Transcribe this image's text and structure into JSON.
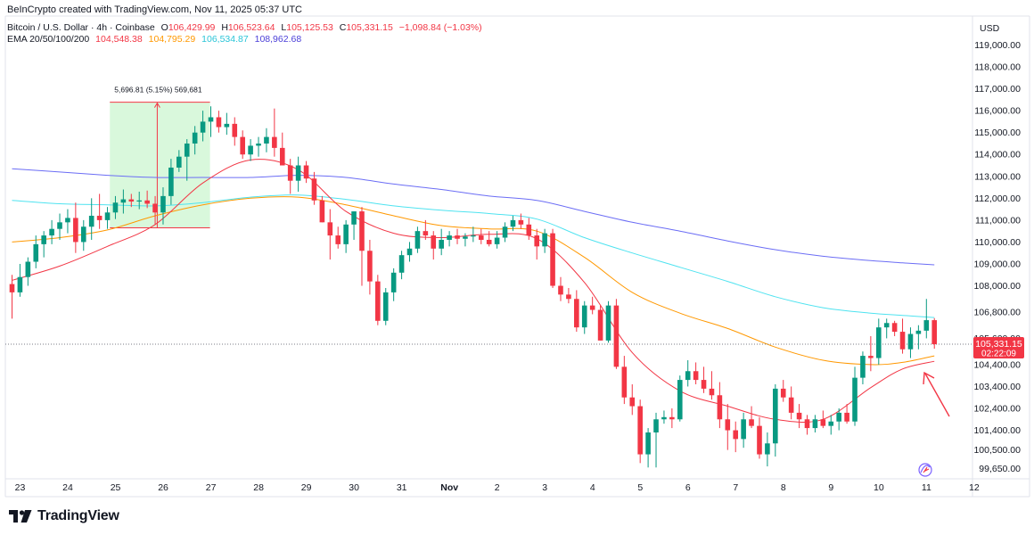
{
  "header": {
    "created_by": "BeInCrypto created with TradingView.com, Nov 11, 2025 05:37 UTC"
  },
  "legend": {
    "symbol": "Bitcoin / U.S. Dollar · 4h · Coinbase",
    "open_label": "O",
    "open_value": "106,429.99",
    "high_label": "H",
    "high_value": "106,523.64",
    "low_label": "L",
    "low_value": "105,125.53",
    "close_label": "C",
    "close_value": "105,331.15",
    "change": "−1,098.84 (−1.03%)",
    "ema_title": "EMA 20/50/100/200",
    "ema20": "104,548.38",
    "ema50": "104,795.29",
    "ema100": "106,534.87",
    "ema200": "108,962.68"
  },
  "colors": {
    "up": "#089981",
    "down": "#f23645",
    "ema20": "#f23645",
    "ema50": "#ff9800",
    "ema100": "#4fe3f0",
    "ema200": "#6b6df5",
    "measure_fill": "#b9f2c0",
    "measure_border": "#f23645",
    "price_tag": "#f23645"
  },
  "brand": {
    "name": "TradingView",
    "icon": "tradingview-logo-icon"
  },
  "chart_data": {
    "type": "candlestick",
    "currency": "USD",
    "timeframe": "4h",
    "ylim": [
      99150,
      119700
    ],
    "price_labels": [
      "119,000.00",
      "118,000.00",
      "117,000.00",
      "116,000.00",
      "115,000.00",
      "114,000.00",
      "113,000.00",
      "112,000.00",
      "111,000.00",
      "110,000.00",
      "109,000.00",
      "108,000.00",
      "106,800.00",
      "105,600.00",
      "104,400.00",
      "103,400.00",
      "102,400.00",
      "101,400.00",
      "100,500.00",
      "99,650.00"
    ],
    "price_ticks": [
      119000,
      118000,
      117000,
      116000,
      115000,
      114000,
      113000,
      112000,
      111000,
      110000,
      109000,
      108000,
      106800,
      105600,
      104400,
      103400,
      102400,
      101400,
      100500,
      99650
    ],
    "date_labels": [
      "23",
      "24",
      "25",
      "26",
      "27",
      "28",
      "29",
      "30",
      "31",
      "Nov",
      "2",
      "3",
      "4",
      "5",
      "6",
      "7",
      "8",
      "9",
      "10",
      "11",
      "12"
    ],
    "date_ticks": [
      0,
      6,
      12,
      18,
      24,
      30,
      36,
      42,
      48,
      54,
      60,
      66,
      72,
      78,
      84,
      90,
      96,
      102,
      108,
      114,
      120
    ],
    "last_price": {
      "price": 105331.15,
      "label": "105,331.15",
      "countdown": "02:22:09"
    },
    "measure": {
      "label": "5,696.81 (5.15%) 569,681",
      "start_bar": 12.3,
      "end_bar": 24.9,
      "low": 110650,
      "high": 116390
    },
    "candles": [
      [
        0,
        108080,
        108500,
        106500,
        107700
      ],
      [
        1,
        107700,
        109000,
        107500,
        108400
      ],
      [
        2,
        108400,
        109300,
        108000,
        109100
      ],
      [
        3,
        109100,
        110300,
        108800,
        109900
      ],
      [
        4,
        109900,
        110500,
        109300,
        110300
      ],
      [
        5,
        110300,
        111000,
        109900,
        110600
      ],
      [
        6,
        110600,
        111300,
        110100,
        110900
      ],
      [
        7,
        110900,
        111500,
        110400,
        111100
      ],
      [
        8,
        111100,
        111800,
        109500,
        110000
      ],
      [
        9,
        110000,
        111000,
        109600,
        110700
      ],
      [
        10,
        110700,
        112000,
        110100,
        111200
      ],
      [
        11,
        111200,
        112200,
        110600,
        111000
      ],
      [
        12,
        111000,
        111600,
        110600,
        111350
      ],
      [
        13,
        111350,
        112100,
        111050,
        111800
      ],
      [
        14,
        111800,
        112400,
        111300,
        111950
      ],
      [
        15,
        111950,
        112200,
        111600,
        111850
      ],
      [
        16,
        111850,
        112300,
        111500,
        111900
      ],
      [
        17,
        111900,
        112350,
        111550,
        111750
      ],
      [
        18,
        111750,
        112100,
        110800,
        111350
      ],
      [
        19,
        111350,
        112500,
        110800,
        112100
      ],
      [
        20,
        112100,
        113800,
        111700,
        113400
      ],
      [
        21,
        113400,
        114200,
        113200,
        113900
      ],
      [
        22,
        113900,
        114700,
        112800,
        114500
      ],
      [
        23,
        114500,
        115300,
        114000,
        115000
      ],
      [
        24,
        115000,
        116000,
        114600,
        115500
      ],
      [
        25,
        115500,
        116200,
        114800,
        115700
      ],
      [
        26,
        115700,
        116000,
        115000,
        115250
      ],
      [
        27,
        115250,
        115900,
        114900,
        115400
      ],
      [
        28,
        115400,
        115700,
        114400,
        114800
      ],
      [
        29,
        114800,
        115100,
        113800,
        114000
      ],
      [
        30,
        114000,
        114700,
        113700,
        114400
      ],
      [
        31,
        114400,
        114800,
        113900,
        114500
      ],
      [
        32,
        114500,
        115200,
        114100,
        114800
      ],
      [
        33,
        114800,
        116100,
        113900,
        114300
      ],
      [
        34,
        114300,
        115000,
        113700,
        113500
      ],
      [
        35,
        113500,
        113800,
        112200,
        112800
      ],
      [
        36,
        112800,
        113900,
        112300,
        113500
      ],
      [
        37,
        113500,
        113700,
        112700,
        112900
      ],
      [
        38,
        112900,
        113200,
        111700,
        111900
      ],
      [
        39,
        111900,
        112100,
        110900,
        110900
      ],
      [
        40,
        110900,
        111500,
        109200,
        110300
      ],
      [
        41,
        110300,
        110700,
        109700,
        109900
      ],
      [
        42,
        109900,
        111000,
        109500,
        110800
      ],
      [
        43,
        110800,
        111400,
        110100,
        111400
      ],
      [
        44,
        111400,
        111600,
        108000,
        109600
      ],
      [
        45,
        109600,
        110100,
        107600,
        108200
      ],
      [
        46,
        108200,
        108500,
        106200,
        106400
      ],
      [
        47,
        106400,
        107900,
        106200,
        107700
      ],
      [
        48,
        107700,
        108800,
        107300,
        108600
      ],
      [
        49,
        108600,
        109600,
        108300,
        109400
      ],
      [
        50,
        109400,
        110000,
        109100,
        109700
      ],
      [
        51,
        109700,
        110700,
        109500,
        110500
      ],
      [
        52,
        110500,
        111000,
        110100,
        110300
      ],
      [
        53,
        110300,
        110500,
        109200,
        109700
      ],
      [
        54,
        109700,
        110600,
        109400,
        110100
      ],
      [
        55,
        110100,
        110500,
        109800,
        110300
      ],
      [
        56,
        110300,
        110600,
        109900,
        110150
      ],
      [
        57,
        110150,
        110400,
        109800,
        110250
      ],
      [
        58,
        110250,
        110700,
        110000,
        110300
      ],
      [
        59,
        110300,
        110600,
        109900,
        110100
      ],
      [
        60,
        110100,
        110500,
        109800,
        109900
      ],
      [
        61,
        109900,
        110500,
        109700,
        110200
      ],
      [
        62,
        110200,
        110900,
        110000,
        110700
      ],
      [
        63,
        110700,
        111200,
        110500,
        111000
      ],
      [
        64,
        111000,
        111300,
        110600,
        110800
      ],
      [
        65,
        110800,
        111100,
        110100,
        110300
      ],
      [
        66,
        110300,
        110600,
        109200,
        109800
      ],
      [
        67,
        109800,
        110600,
        109500,
        110400
      ],
      [
        68,
        110400,
        110600,
        107900,
        108000
      ],
      [
        69,
        108000,
        108400,
        107300,
        107600
      ],
      [
        70,
        107600,
        107900,
        107200,
        107400
      ],
      [
        71,
        107400,
        107800,
        105900,
        106100
      ],
      [
        72,
        106100,
        107300,
        105800,
        107100
      ],
      [
        73,
        107100,
        107500,
        106700,
        106900
      ],
      [
        74,
        106900,
        107100,
        105500,
        105500
      ],
      [
        75,
        105500,
        107300,
        105400,
        107100
      ],
      [
        76,
        107100,
        107400,
        104200,
        104300
      ],
      [
        77,
        104300,
        104800,
        102600,
        102900
      ],
      [
        78,
        102900,
        103500,
        102100,
        102500
      ],
      [
        79,
        102500,
        102800,
        99900,
        100300
      ],
      [
        80,
        100300,
        101500,
        99700,
        101300
      ],
      [
        81,
        101300,
        102200,
        99700,
        101900
      ],
      [
        82,
        101900,
        102300,
        101700,
        102000
      ],
      [
        83,
        102000,
        102400,
        101500,
        101900
      ],
      [
        84,
        101900,
        103900,
        101800,
        103700
      ],
      [
        85,
        103700,
        104600,
        103400,
        104100
      ],
      [
        86,
        104100,
        104500,
        103500,
        103700
      ],
      [
        87,
        103700,
        104300,
        103100,
        103300
      ],
      [
        88,
        103300,
        104100,
        102800,
        103000
      ],
      [
        89,
        103000,
        103600,
        101500,
        101900
      ],
      [
        90,
        101900,
        102600,
        100500,
        101400
      ],
      [
        91,
        101400,
        101800,
        100400,
        101000
      ],
      [
        92,
        101000,
        102200,
        100600,
        101900
      ],
      [
        93,
        101900,
        102500,
        101500,
        101600
      ],
      [
        94,
        101600,
        102000,
        100100,
        100300
      ],
      [
        95,
        100300,
        101300,
        99750,
        100800
      ],
      [
        96,
        100800,
        103500,
        100200,
        103300
      ],
      [
        97,
        103300,
        103700,
        102700,
        102900
      ],
      [
        98,
        102900,
        103400,
        101900,
        102200
      ],
      [
        99,
        102200,
        102600,
        101500,
        101900
      ],
      [
        100,
        101900,
        102100,
        101200,
        101500
      ],
      [
        101,
        101500,
        102100,
        101300,
        101900
      ],
      [
        102,
        101900,
        102300,
        101500,
        101600
      ],
      [
        103,
        101600,
        102100,
        101200,
        101800
      ],
      [
        104,
        101800,
        102400,
        101400,
        102200
      ],
      [
        105,
        102200,
        102600,
        101700,
        101800
      ],
      [
        106,
        101800,
        104300,
        101600,
        103800
      ],
      [
        107,
        103800,
        105000,
        103500,
        104800
      ],
      [
        108,
        104800,
        105700,
        104100,
        104700
      ],
      [
        109,
        104700,
        106500,
        104400,
        106100
      ],
      [
        110,
        106100,
        106500,
        105600,
        106300
      ],
      [
        111,
        106300,
        106400,
        105700,
        105900
      ],
      [
        112,
        105900,
        106500,
        104900,
        105100
      ],
      [
        113,
        105100,
        106100,
        104700,
        105800
      ],
      [
        114,
        105800,
        106200,
        105100,
        105950
      ],
      [
        115,
        105950,
        107400,
        105600,
        106430
      ],
      [
        116,
        106430,
        106524,
        105126,
        105331
      ]
    ],
    "ema": [
      {
        "name": "EMA 20",
        "color": "#f23645",
        "x": [
          0,
          6,
          12,
          18,
          24,
          30,
          36,
          42,
          48,
          54,
          60,
          66,
          72,
          78,
          84,
          90,
          96,
          102,
          108,
          112,
          116
        ],
        "y": [
          108250,
          108900,
          109800,
          110800,
          112700,
          113750,
          113300,
          111400,
          110400,
          110200,
          110350,
          110150,
          108150,
          104950,
          103200,
          102500,
          101900,
          101900,
          103350,
          104200,
          104550
        ]
      },
      {
        "name": "EMA 50",
        "color": "#ff9800",
        "x": [
          0,
          6,
          12,
          18,
          24,
          30,
          36,
          42,
          48,
          54,
          60,
          66,
          72,
          78,
          84,
          90,
          96,
          102,
          108,
          112,
          116
        ],
        "y": [
          110000,
          110200,
          110550,
          111200,
          111700,
          112000,
          112050,
          111700,
          111200,
          110750,
          110600,
          110500,
          109300,
          107700,
          106750,
          106050,
          105200,
          104600,
          104400,
          104500,
          104800
        ]
      },
      {
        "name": "EMA 100",
        "color": "#4fe3f0",
        "x": [
          0,
          6,
          12,
          18,
          24,
          30,
          36,
          42,
          48,
          54,
          60,
          66,
          72,
          78,
          84,
          90,
          96,
          102,
          108,
          112,
          116
        ],
        "y": [
          111900,
          111750,
          111700,
          111650,
          111800,
          112050,
          112150,
          111950,
          111650,
          111450,
          111300,
          111050,
          110200,
          109500,
          108850,
          108200,
          107500,
          107000,
          106750,
          106650,
          106550
        ]
      },
      {
        "name": "EMA 200",
        "color": "#6b6df5",
        "x": [
          0,
          6,
          12,
          18,
          24,
          30,
          36,
          42,
          48,
          54,
          60,
          66,
          72,
          78,
          84,
          90,
          96,
          102,
          108,
          112,
          116
        ],
        "y": [
          113350,
          113200,
          113050,
          112950,
          112950,
          112950,
          113050,
          112950,
          112650,
          112400,
          112100,
          111900,
          111400,
          110900,
          110500,
          110050,
          109650,
          109350,
          109150,
          109050,
          108960
        ]
      }
    ]
  }
}
